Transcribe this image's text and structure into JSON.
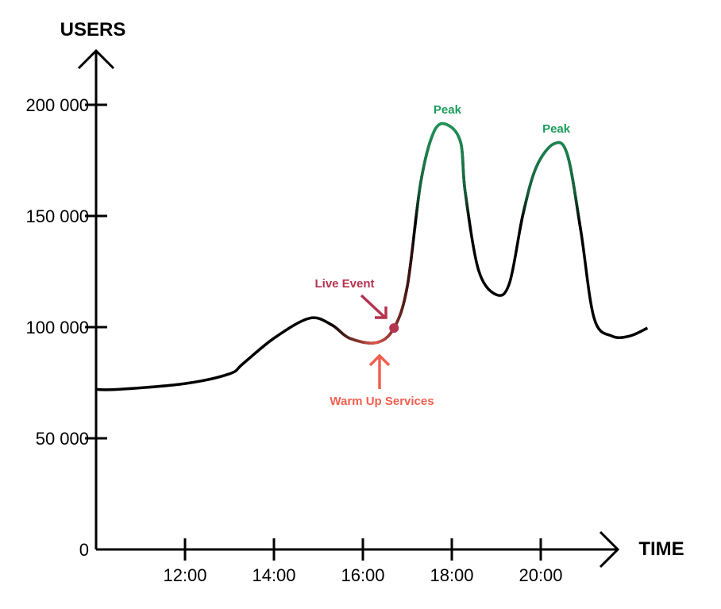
{
  "chart_data": {
    "type": "line",
    "title": "",
    "xlabel": "TIME",
    "ylabel": "USERS",
    "xlim": [
      10,
      22.6
    ],
    "ylim": [
      0,
      200000
    ],
    "grid": false,
    "y_ticks": [
      {
        "value": 0,
        "label": "0"
      },
      {
        "value": 50000,
        "label": "50 000"
      },
      {
        "value": 100000,
        "label": "100 000"
      },
      {
        "value": 150000,
        "label": "150 000"
      },
      {
        "value": 200000,
        "label": "200 000"
      }
    ],
    "x_ticks": [
      {
        "value": 12,
        "label": "12:00"
      },
      {
        "value": 14,
        "label": "14:00"
      },
      {
        "value": 16,
        "label": "16:00"
      },
      {
        "value": 18,
        "label": "18:00"
      },
      {
        "value": 20,
        "label": "20:00"
      }
    ],
    "series": [
      {
        "name": "Users",
        "x": [
          10,
          10.5,
          12,
          13,
          13.3,
          14,
          14.8,
          15.3,
          15.7,
          16.3,
          16.7,
          17.0,
          17.3,
          17.6,
          17.9,
          18.2,
          18.3,
          18.6,
          19.0,
          19.3,
          19.6,
          19.9,
          20.3,
          20.6,
          20.9,
          21.2,
          21.6,
          22.0,
          22.4
        ],
        "y": [
          72000,
          72000,
          74600,
          79000,
          83500,
          95000,
          104000,
          101000,
          95000,
          93000,
          99600,
          118500,
          165000,
          188000,
          191000,
          183000,
          161000,
          125700,
          114600,
          120000,
          150700,
          172000,
          182500,
          177500,
          143500,
          104000,
          96000,
          96000,
          99600
        ]
      }
    ],
    "annotations": [
      {
        "text": "Live Event",
        "x": 16.7,
        "y": 99600,
        "color": "#b5344f",
        "marker": "dot"
      },
      {
        "text": "Warm Up Services",
        "x": 16.35,
        "y": 93000,
        "color": "#f0604f",
        "marker": "arrow-up"
      },
      {
        "text": "Peak",
        "x": 17.9,
        "y": 191000,
        "color": "#1a9c5b"
      },
      {
        "text": "Peak",
        "x": 20.35,
        "y": 182500,
        "color": "#1a9c5b"
      }
    ]
  }
}
